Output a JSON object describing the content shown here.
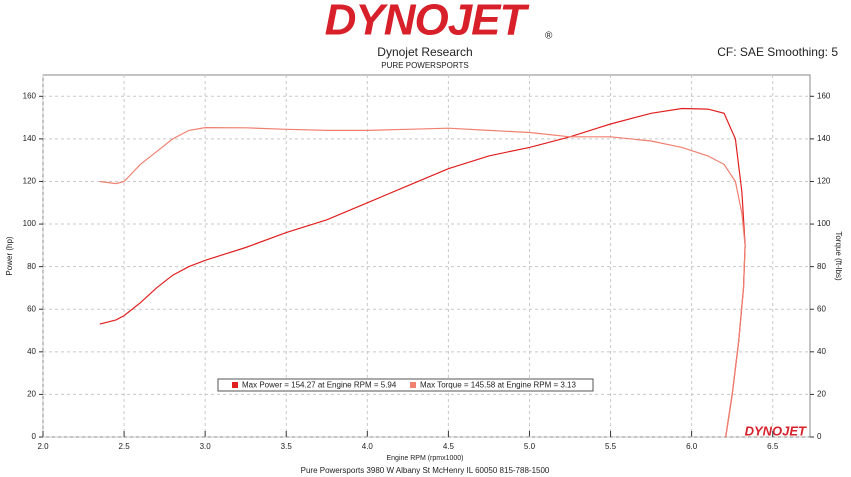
{
  "chart_data": {
    "type": "line",
    "logo": "DYNOJET",
    "logo_mark": "®",
    "title": "Dynojet Research",
    "subtitle": "PURE POWERSPORTS",
    "correction": "CF: SAE Smoothing: 5",
    "footer": "Pure Powersports 3980 W Albany St McHenry IL 60050 815-788-1500",
    "x_label": "Engine RPM (rpmx1000)",
    "y_label": "Power (hp)",
    "y2_label": "Torque (ft-lbs)",
    "xlim": [
      2.0,
      6.73
    ],
    "xticks": [
      {
        "value": 2,
        "label": "2.0"
      },
      2.5,
      {
        "value": 3,
        "label": "3.0"
      },
      3.5,
      {
        "value": 4,
        "label": "4.0"
      },
      4.5,
      {
        "value": 5,
        "label": "5.0"
      },
      5.5,
      {
        "value": 6,
        "label": "6.0"
      },
      6.5
    ],
    "ylim": [
      0,
      170
    ],
    "yticks": [
      0,
      20,
      40,
      60,
      80,
      100,
      120,
      140,
      160
    ],
    "y2lim": [
      0,
      170
    ],
    "y2ticks": [
      0,
      20,
      40,
      60,
      80,
      100,
      120,
      140,
      160
    ],
    "grid": true,
    "x": [
      2.35,
      2.45,
      2.5,
      2.6,
      2.7,
      2.8,
      2.9,
      3.0,
      3.25,
      3.5,
      3.75,
      4.0,
      4.25,
      4.5,
      4.75,
      5.0,
      5.25,
      5.5,
      5.75,
      5.94,
      6.1,
      6.2,
      6.27,
      6.31,
      6.33,
      6.32,
      6.29,
      6.25,
      6.21
    ],
    "series": [
      {
        "name": "Max Power = 154.27 at Engine RPM = 5.94",
        "color": "#e02020",
        "values": [
          53,
          55,
          57,
          63,
          70,
          76,
          80,
          83,
          89,
          96,
          102,
          110,
          118,
          126,
          132,
          136,
          141,
          147,
          152,
          154.27,
          154,
          152,
          140,
          115,
          90,
          70,
          45,
          20,
          0
        ]
      },
      {
        "name": "Max Torque = 145.58 at Engine RPM = 3.13",
        "color": "#f08070",
        "axis": "y2",
        "values": [
          120,
          119,
          120,
          128,
          134,
          140,
          144,
          145.3,
          145.2,
          144.5,
          144,
          144,
          144.5,
          145,
          144,
          143,
          141,
          141,
          139,
          136,
          132,
          128,
          120,
          105,
          90,
          70,
          45,
          20,
          0
        ]
      }
    ]
  }
}
